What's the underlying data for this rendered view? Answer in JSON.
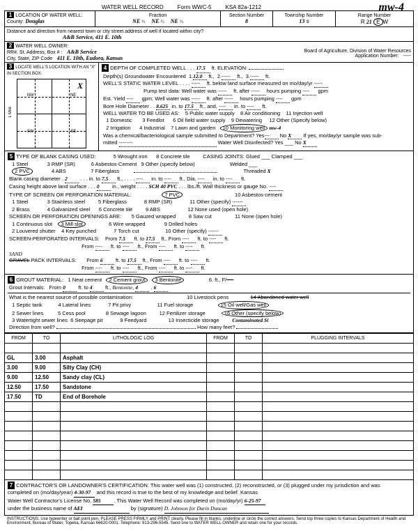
{
  "form": {
    "title": "WATER WELL RECORD",
    "form_no": "Form WWC-5",
    "ksa": "KSA 82a-1212",
    "corner_note": "mw-4"
  },
  "loc": {
    "label": "LOCATION OF WATER WELL:",
    "county_label": "County:",
    "county": "Douglas",
    "fraction_label": "Fraction",
    "f1": "NE",
    "f2": "NE",
    "f3": "NE",
    "q": "¼",
    "sec_label": "Section Number",
    "sec": "8",
    "twp_label": "Township Number",
    "twp": "13",
    "twp_dir": "s",
    "rng_label": "Range Number",
    "rng": "21",
    "rng_dir": "E/W",
    "dist_label": "Distance and direction from nearest town or city street address of well if located within city?",
    "dist": "A&B Service, 411 E. 10th"
  },
  "owner": {
    "label": "WATER WELL OWNER:",
    "rr_label": "RR#, St. Address, Box # :",
    "city_label": "City, State, ZIP Code",
    "name": "A&B Service",
    "addr": "411 E. 10th, Eudora, Kansas",
    "board": "Board of Agriculture, Division of Water Resources",
    "app_label": "Application Number:",
    "app": "-----"
  },
  "s3": {
    "label": "LOCATE WELL'S LOCATION WITH AN \"X\" IN SECTION BOX:",
    "nw": "NW",
    "ne": "NE",
    "sw": "SW",
    "se": "SE",
    "n": "N",
    "s": "S",
    "e": "E",
    "w": "W",
    "mile": "1 Mile"
  },
  "s4": {
    "depth_label": "DEPTH OF COMPLETED WELL",
    "depth": "17.5",
    "elev_label": "ft. ELEVATION:",
    "gw_label": "Depth(s) Groundwater Encountered",
    "gw1": "12.0",
    "swl_label": "WELL'S STATIC WATER LEVEL",
    "swl_suffix": "ft. below land surface measured on mo/day/yr",
    "pump_label": "Pump test data:  Well water was",
    "yield_label": "Est. Yield",
    "bore_label": "Bore Hole Diameter",
    "bore": "8.625",
    "bore_to": "17.5",
    "use_label": "WELL WATER TO BE USED AS:",
    "uses": [
      "1 Domestic",
      "2 Irrigation",
      "3 Feedlot",
      "4 Industrial",
      "5 Public water supply",
      "6 Oil field water supply",
      "7 Lawn and garden",
      "8 Air conditioning",
      "9 Dewatering",
      "10 Monitoring well",
      "11 Injection well",
      "12 Other (Specify below)"
    ],
    "mon_note": "mw-4",
    "chem_label": "Was a chemical/bacteriological sample submitted to Department?  Yes",
    "no": "No",
    "x": "X",
    "disinfect": "Water Well Disinfected?  Yes ___  No"
  },
  "s5": {
    "label": "TYPE OF BLANK CASING USED:",
    "types": [
      "1 Steel",
      "2 PVC",
      "3 RMP (SR)",
      "4 ABS",
      "5 Wrought iron",
      "6 Asbestos-Cement",
      "7 Fiberglass",
      "8 Concrete tile",
      "9 Other (specify below)"
    ],
    "joints_label": "CASING JOINTS:",
    "joints": [
      "Glued",
      "Welded",
      "Threaded",
      "Clamped"
    ],
    "dia_label": "Blank casing diameter",
    "dia": "2",
    "dia_to": "7.5",
    "height_label": "Casing height above land surface",
    "height": "0",
    "sch": "SCH 40 PVC",
    "wall": "lbs./ft. Wall thickness or gauge No.",
    "screen_label": "TYPE OF SCREEN OR PERFORATION MATERIAL:",
    "screens": [
      "1 Steel",
      "2 Brass",
      "3 Stainless steel",
      "4 Galvanized steel",
      "5 Fiberglass",
      "6 Concrete tile",
      "7 PVC",
      "8 RMP (SR)",
      "9 ABS",
      "10 Asbestos-cement",
      "11 Other (specify)",
      "12 None used (open hole)"
    ],
    "open_label": "SCREEN OR PERFORATION OPENINGS ARE:",
    "opens": [
      "1 Continuous slot",
      "2 Louvered shutter",
      "3 Mill slot",
      "4 Key punched",
      "5 Gauzed wrapped",
      "6 Wire wrapped",
      "7 Torch cut",
      "8 Saw cut",
      "9 Drilled holes",
      "10 Other (specify)",
      "11 None (open hole)"
    ],
    "sp_label": "SCREEN-PERFORATED INTERVALS:",
    "sp_from": "7.5",
    "sp_to": "17.5",
    "gp_label": "GRAVEL PACK INTERVALS:",
    "gp_strike": "SAND",
    "gp_from": "6",
    "gp_to": "17.5"
  },
  "s6": {
    "label": "GROUT MATERIAL:",
    "opts": [
      "1 Neat cement",
      "2 Cement grout",
      "3 Bentonite"
    ],
    "gi_label": "Grout Intervals:",
    "gi_from": "0",
    "gi_to": "4",
    "gi2_from": "4",
    "gi2_to": "6",
    "contam_label": "What is the nearest source of possible contamination:",
    "contam": [
      "1 Septic tank",
      "2 Sewer lines",
      "3 Watertight sewer lines",
      "4 Lateral lines",
      "5 Cess pool",
      "6 Seepage pit",
      "7 Pit privy",
      "8 Sewage lagoon",
      "9 Feedyard",
      "10 Livestock pens",
      "11 Fuel storage",
      "12 Fertilizer storage",
      "13 Insecticide storage",
      "14 Abandoned water well",
      "15 Oil well/Gas well",
      "16 Other (specify below)"
    ],
    "other_note": "Contaminated Si",
    "dir_label": "Direction from well?",
    "feet_label": "How many feet?"
  },
  "log": {
    "headers": [
      "FROM",
      "TO",
      "LITHOLOGIC LOG",
      "FROM",
      "TO",
      "PLUGGING INTERVALS"
    ],
    "rows": [
      [
        "GL",
        "3.00",
        "Asphalt",
        "",
        "",
        ""
      ],
      [
        "3.00",
        "9.00",
        "Silty Clay (CH)",
        "",
        "",
        ""
      ],
      [
        "9.00",
        "12.50",
        "Sandy clay (CL)",
        "",
        "",
        ""
      ],
      [
        "12.50",
        "17.50",
        "Sandstone",
        "",
        "",
        ""
      ],
      [
        "17.50",
        "TD",
        "End of Borehole",
        "",
        "",
        ""
      ]
    ],
    "empty_rows": 8
  },
  "s7": {
    "label": "CONTRACTOR'S OR LANDOWNER'S CERTIFICATION:",
    "text1": "This water well was (1) constructed, (2) reconstructed, or (3) plugged under my jurisdiction and was",
    "text2": "completed on (mo/day/year)",
    "date1": "4-30-97",
    "text3": "and this record is true to the best of my knowledge and belief. Kansas",
    "text4": "Water Well Contractor's License No.",
    "lic": "585",
    "text5": "This Water Well Record was completed on (mo/day/yr)",
    "date2": "6-25-97",
    "text6": "under the business name of",
    "biz": "AEI",
    "sig_label": "by (signature)",
    "sig": "D. Johnson for Darin Duncan"
  },
  "instr": "INSTRUCTIONS: Use typewriter or ball point pen. PLEASE PRESS FIRMLY and PRINT clearly. Please fill in blanks, underline or circle the correct answers. Send top three copies to Kansas Department of Health and Environment, Bureau of Water, Topeka, Kansas 66620-0001. Telephone: 913-296-5545. Send one to WATER WELL OWNER and retain one for your records."
}
